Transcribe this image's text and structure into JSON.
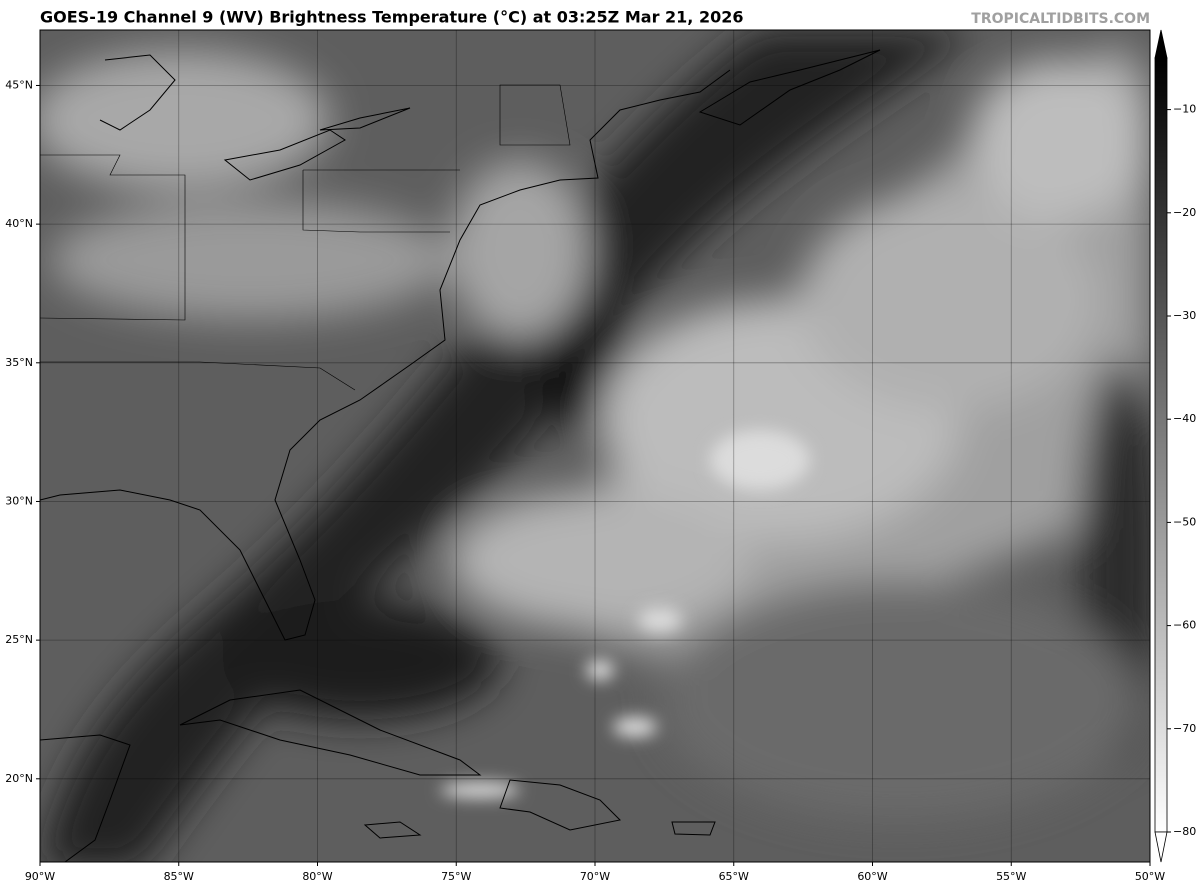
{
  "chart_data": {
    "type": "map",
    "title": "GOES-19 Channel 9 (WV) Brightness Temperature (°C) at 03:25Z Mar 21, 2026",
    "watermark": "TROPICALTIDBITS.COM",
    "xlim": [
      -90,
      -50
    ],
    "ylim": [
      17,
      47
    ],
    "xticks": [
      {
        "value": -90,
        "label": "90°W"
      },
      {
        "value": -85,
        "label": "85°W"
      },
      {
        "value": -80,
        "label": "80°W"
      },
      {
        "value": -75,
        "label": "75°W"
      },
      {
        "value": -70,
        "label": "70°W"
      },
      {
        "value": -65,
        "label": "65°W"
      },
      {
        "value": -60,
        "label": "60°W"
      },
      {
        "value": -55,
        "label": "55°W"
      },
      {
        "value": -50,
        "label": "50°W"
      }
    ],
    "yticks": [
      {
        "value": 20,
        "label": "20°N"
      },
      {
        "value": 25,
        "label": "25°N"
      },
      {
        "value": 30,
        "label": "30°N"
      },
      {
        "value": 35,
        "label": "35°N"
      },
      {
        "value": 40,
        "label": "40°N"
      },
      {
        "value": 45,
        "label": "45°N"
      }
    ],
    "grid": true,
    "colorbar": {
      "lim": [
        -80,
        -5
      ],
      "colors": [
        "#ffffff",
        "#000000"
      ],
      "ticks": [
        {
          "value": -10,
          "label": "−10"
        },
        {
          "value": -20,
          "label": "−20"
        },
        {
          "value": -30,
          "label": "−30"
        },
        {
          "value": -40,
          "label": "−40"
        },
        {
          "value": -50,
          "label": "−50"
        },
        {
          "value": -60,
          "label": "−60"
        },
        {
          "value": -70,
          "label": "−70"
        },
        {
          "value": -80,
          "label": "−80"
        }
      ]
    }
  }
}
